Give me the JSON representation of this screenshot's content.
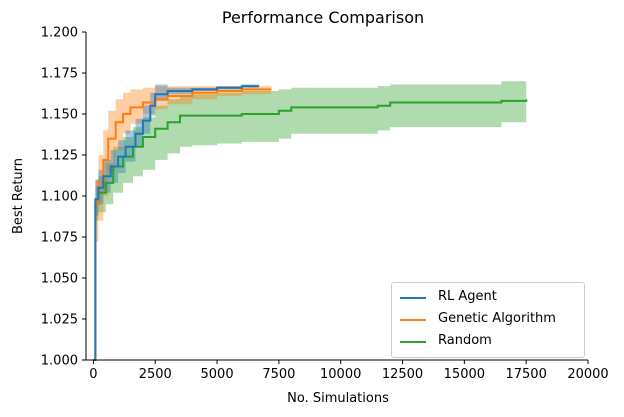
{
  "chart_data": {
    "type": "line",
    "title": "Performance Comparison",
    "xlabel": "No. Simulations",
    "ylabel": "Best Return",
    "xlim": [
      -300,
      20000
    ],
    "ylim": [
      1.0,
      1.2
    ],
    "xticks": [
      0,
      2500,
      5000,
      7500,
      10000,
      12500,
      15000,
      17500,
      20000
    ],
    "xtick_labels": [
      "0",
      "2500",
      "5000",
      "7500",
      "10000",
      "12500",
      "15000",
      "17500",
      "20000"
    ],
    "yticks": [
      1.0,
      1.025,
      1.05,
      1.075,
      1.1,
      1.125,
      1.15,
      1.175,
      1.2
    ],
    "ytick_labels": [
      "1.000",
      "1.025",
      "1.050",
      "1.075",
      "1.100",
      "1.125",
      "1.150",
      "1.175",
      "1.200"
    ],
    "grid": false,
    "legend_position": "bottom-right",
    "series": [
      {
        "name": "RL Agent",
        "color": "#1f77b4",
        "x": [
          0,
          80,
          200,
          400,
          700,
          1000,
          1300,
          1700,
          2000,
          2300,
          2500,
          3000,
          4000,
          5000,
          6000,
          6700
        ],
        "y": [
          1.0,
          1.098,
          1.105,
          1.112,
          1.118,
          1.124,
          1.13,
          1.138,
          1.146,
          1.155,
          1.162,
          1.164,
          1.165,
          1.166,
          1.167,
          1.167
        ],
        "lower": [
          1.0,
          1.088,
          1.095,
          1.102,
          1.108,
          1.114,
          1.121,
          1.13,
          1.138,
          1.149,
          1.158,
          1.162,
          1.164,
          1.165,
          1.166,
          1.166
        ],
        "upper": [
          1.0,
          1.11,
          1.116,
          1.122,
          1.128,
          1.134,
          1.14,
          1.147,
          1.155,
          1.163,
          1.168,
          1.166,
          1.166,
          1.167,
          1.168,
          1.168
        ]
      },
      {
        "name": "Genetic Algorithm",
        "color": "#ff7f0e",
        "x": [
          0,
          80,
          200,
          400,
          600,
          900,
          1200,
          1500,
          2000,
          2500,
          3000,
          4000,
          5000,
          6000,
          7200
        ],
        "y": [
          1.0,
          1.095,
          1.108,
          1.122,
          1.135,
          1.145,
          1.15,
          1.154,
          1.157,
          1.159,
          1.161,
          1.163,
          1.164,
          1.165,
          1.165
        ],
        "lower": [
          1.0,
          1.072,
          1.085,
          1.1,
          1.115,
          1.128,
          1.138,
          1.144,
          1.15,
          1.153,
          1.156,
          1.159,
          1.161,
          1.162,
          1.163
        ],
        "upper": [
          1.0,
          1.11,
          1.125,
          1.14,
          1.152,
          1.159,
          1.163,
          1.165,
          1.166,
          1.167,
          1.167,
          1.167,
          1.167,
          1.167,
          1.167
        ]
      },
      {
        "name": "Random",
        "color": "#2ca02c",
        "x": [
          0,
          80,
          200,
          500,
          800,
          1200,
          1600,
          2000,
          2500,
          3000,
          3500,
          4000,
          5000,
          6000,
          7500,
          8000,
          11500,
          12000,
          16500,
          17500
        ],
        "y": [
          1.0,
          1.095,
          1.102,
          1.108,
          1.118,
          1.124,
          1.13,
          1.136,
          1.141,
          1.145,
          1.149,
          1.149,
          1.149,
          1.15,
          1.152,
          1.154,
          1.155,
          1.157,
          1.158,
          1.159
        ],
        "lower": [
          1.0,
          1.085,
          1.09,
          1.095,
          1.102,
          1.108,
          1.112,
          1.116,
          1.122,
          1.126,
          1.13,
          1.131,
          1.132,
          1.133,
          1.135,
          1.138,
          1.14,
          1.142,
          1.145,
          1.147
        ],
        "upper": [
          1.0,
          1.106,
          1.112,
          1.12,
          1.13,
          1.136,
          1.142,
          1.148,
          1.155,
          1.159,
          1.161,
          1.162,
          1.163,
          1.164,
          1.165,
          1.166,
          1.167,
          1.168,
          1.17,
          1.171
        ]
      }
    ]
  }
}
